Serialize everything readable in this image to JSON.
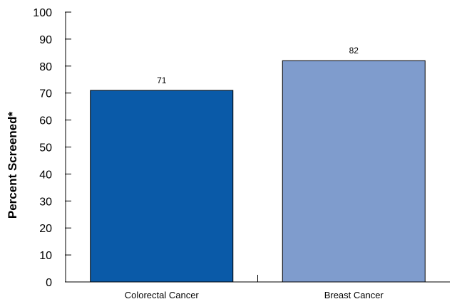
{
  "chart_data": {
    "type": "bar",
    "categories": [
      "Colorectal Cancer",
      "Breast Cancer"
    ],
    "values": [
      71,
      82
    ],
    "value_labels": [
      "71",
      "82"
    ],
    "title": "",
    "xlabel": "",
    "ylabel": "Percent Screened*",
    "ylim": [
      0,
      100
    ],
    "yticks": [
      "0",
      "10",
      "20",
      "30",
      "40",
      "50",
      "60",
      "70",
      "80",
      "90",
      "100"
    ],
    "grid": false,
    "legend": "none",
    "colors": [
      "#0a5aa8",
      "#7f9ccd"
    ],
    "edge_color": "#000000"
  }
}
